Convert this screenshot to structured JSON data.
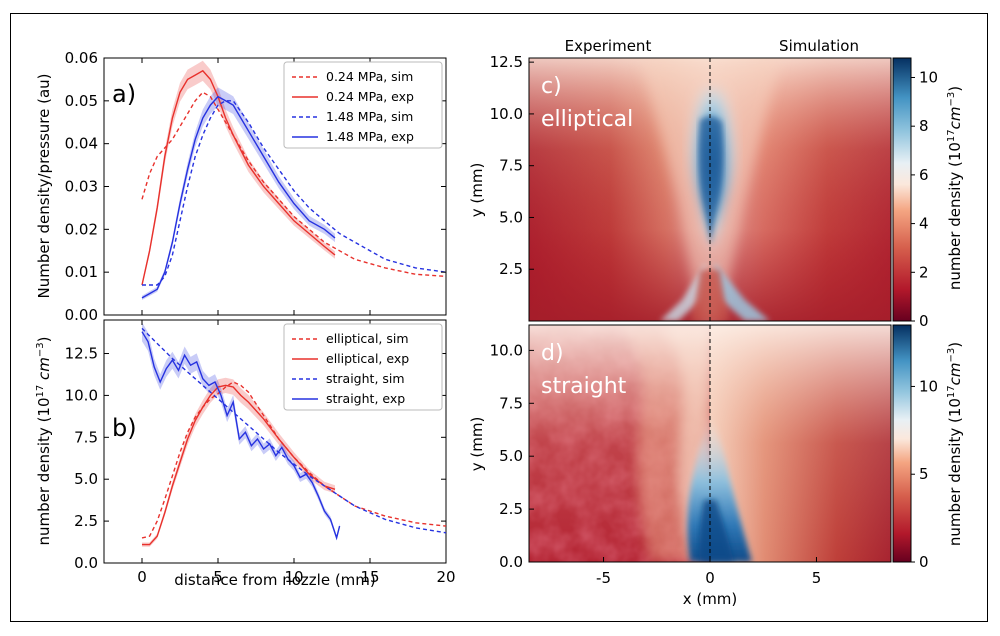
{
  "chart_data": [
    {
      "panel": "a)",
      "type": "line",
      "xlim": [
        -2.5,
        20
      ],
      "ylim": [
        0.0,
        0.06
      ],
      "xticks": [
        0,
        5,
        10,
        15,
        20
      ],
      "yticks": [
        "0.00",
        "0.01",
        "0.02",
        "0.03",
        "0.04",
        "0.05",
        "0.06"
      ],
      "ylabel": "Number density/pressure (au)",
      "xlabel": "",
      "legend_position": "top-right",
      "series": [
        {
          "name": "0.24 MPa, sim",
          "color": "#e8312c",
          "style": "dashed",
          "x": [
            0,
            0.5,
            1,
            1.5,
            2,
            2.5,
            3,
            3.5,
            4,
            4.5,
            5,
            5.5,
            6,
            7,
            8,
            9,
            10,
            11,
            12,
            13,
            14,
            16,
            18,
            20
          ],
          "y": [
            0.027,
            0.033,
            0.037,
            0.039,
            0.041,
            0.044,
            0.047,
            0.05,
            0.052,
            0.051,
            0.048,
            0.045,
            0.042,
            0.036,
            0.031,
            0.027,
            0.023,
            0.02,
            0.017,
            0.015,
            0.013,
            0.011,
            0.0095,
            0.009
          ]
        },
        {
          "name": "0.24 MPa, exp",
          "color": "#e8312c",
          "style": "solid",
          "x": [
            0,
            0.5,
            1,
            1.5,
            2,
            2.5,
            3,
            3.5,
            4,
            4.5,
            5,
            5.5,
            6,
            7,
            8,
            9,
            10,
            11,
            12,
            12.7
          ],
          "y": [
            0.007,
            0.015,
            0.025,
            0.037,
            0.046,
            0.052,
            0.055,
            0.056,
            0.057,
            0.055,
            0.051,
            0.046,
            0.042,
            0.035,
            0.03,
            0.026,
            0.022,
            0.019,
            0.016,
            0.014
          ]
        },
        {
          "name": "1.48 MPa, sim",
          "color": "#2632e0",
          "style": "dashed",
          "x": [
            0,
            1,
            1.5,
            2,
            2.5,
            3,
            3.5,
            4,
            4.5,
            5,
            5.5,
            6,
            7,
            8,
            9,
            10,
            11,
            12,
            13,
            14,
            16,
            18,
            20
          ],
          "y": [
            0.007,
            0.007,
            0.009,
            0.014,
            0.022,
            0.03,
            0.037,
            0.042,
            0.046,
            0.049,
            0.05,
            0.05,
            0.045,
            0.039,
            0.034,
            0.029,
            0.025,
            0.022,
            0.019,
            0.017,
            0.013,
            0.011,
            0.01
          ]
        },
        {
          "name": "1.48 MPa, exp",
          "color": "#2632e0",
          "style": "solid",
          "x": [
            0,
            0.5,
            1,
            1.5,
            2,
            2.5,
            3,
            3.5,
            4,
            4.5,
            5,
            5.5,
            6,
            7,
            8,
            9,
            10,
            11,
            12,
            12.7
          ],
          "y": [
            0.004,
            0.005,
            0.006,
            0.01,
            0.017,
            0.026,
            0.034,
            0.041,
            0.046,
            0.049,
            0.051,
            0.05,
            0.049,
            0.043,
            0.037,
            0.031,
            0.026,
            0.022,
            0.02,
            0.018
          ]
        }
      ]
    },
    {
      "panel": "b)",
      "type": "line",
      "xlim": [
        -2.5,
        20
      ],
      "ylim": [
        0.0,
        14.5
      ],
      "xticks": [
        0,
        5,
        10,
        15,
        20
      ],
      "yticks": [
        "0.0",
        "2.5",
        "5.0",
        "7.5",
        "10.0",
        "12.5"
      ],
      "ylabel": "number density (10¹⁷ cm⁻³)",
      "xlabel": "distance from nozzle (mm)",
      "legend_position": "top-right",
      "series": [
        {
          "name": "elliptical, sim",
          "color": "#e8312c",
          "style": "dashed",
          "x": [
            0,
            0.5,
            1,
            1.5,
            2,
            2.5,
            3,
            3.5,
            4,
            4.5,
            5,
            5.5,
            6,
            6.5,
            7,
            8,
            9,
            10,
            11,
            12,
            13,
            14,
            16,
            18,
            20
          ],
          "y": [
            1.5,
            1.6,
            2.5,
            3.8,
            5.2,
            6.6,
            7.8,
            8.7,
            9.3,
            9.8,
            10.1,
            10.5,
            10.8,
            10.6,
            10.2,
            8.8,
            7.4,
            6.3,
            5.4,
            4.6,
            4.0,
            3.4,
            2.8,
            2.4,
            2.2
          ]
        },
        {
          "name": "elliptical, exp",
          "color": "#e8312c",
          "style": "solid",
          "x": [
            0,
            0.5,
            1,
            1.5,
            2,
            2.5,
            3,
            3.5,
            4,
            4.5,
            5,
            5.5,
            6,
            6.5,
            7,
            8,
            9,
            10,
            11,
            12,
            12.7
          ],
          "y": [
            1.1,
            1.1,
            1.6,
            3.0,
            4.6,
            6.0,
            7.4,
            8.5,
            9.3,
            10.0,
            10.5,
            10.6,
            10.5,
            10.0,
            9.6,
            8.6,
            7.4,
            6.3,
            5.3,
            4.6,
            4.4
          ]
        },
        {
          "name": "straight, sim",
          "color": "#2632e0",
          "style": "dashed",
          "x": [
            0,
            1,
            2,
            3,
            4,
            5,
            6,
            7,
            8,
            9,
            10,
            11,
            12,
            13,
            14,
            16,
            18,
            20
          ],
          "y": [
            14.0,
            13.1,
            12.2,
            11.4,
            10.6,
            9.8,
            9.0,
            8.2,
            7.4,
            6.6,
            5.9,
            5.2,
            4.6,
            4.0,
            3.4,
            2.6,
            2.1,
            1.8
          ]
        },
        {
          "name": "straight, exp",
          "color": "#2632e0",
          "style": "solid",
          "x": [
            0,
            0.4,
            0.8,
            1.2,
            1.6,
            2,
            2.4,
            2.8,
            3.2,
            3.6,
            4,
            4.4,
            4.8,
            5.2,
            5.6,
            6,
            6.4,
            6.8,
            7.2,
            7.6,
            8,
            8.4,
            8.8,
            9.2,
            9.6,
            10,
            10.4,
            10.8,
            11.2,
            11.6,
            12,
            12.4,
            12.8,
            13
          ],
          "y": [
            13.8,
            13.2,
            11.7,
            10.8,
            11.6,
            12.1,
            11.5,
            12.4,
            11.8,
            12.0,
            11.0,
            10.6,
            10.8,
            10.0,
            8.8,
            9.6,
            7.4,
            7.8,
            7.0,
            7.4,
            6.8,
            7.1,
            6.4,
            6.9,
            6.2,
            5.8,
            5.1,
            5.3,
            4.8,
            4.0,
            3.1,
            2.6,
            1.5,
            2.2
          ]
        }
      ]
    },
    {
      "panel": "c)",
      "type": "heatmap",
      "title_left": "Experiment",
      "title_right": "Simulation",
      "annotation_label": "c)",
      "annotation_text": "elliptical",
      "xlim": [
        -8.5,
        8.5
      ],
      "ylim": [
        0,
        12.7
      ],
      "yticks": [
        "2.5",
        "5.0",
        "7.5",
        "10.0",
        "12.5"
      ],
      "ylabel": "y (mm)",
      "colorbar_label": "number density (10¹⁷cm⁻³)",
      "colorbar_ticks": [
        "0",
        "2",
        "4",
        "6",
        "8",
        "10"
      ],
      "colorbar_range": [
        0,
        10.8
      ],
      "colormap": "RdBu"
    },
    {
      "panel": "d)",
      "type": "heatmap",
      "annotation_label": "d)",
      "annotation_text": "straight",
      "xlim": [
        -8.5,
        8.5
      ],
      "ylim": [
        0,
        11.2
      ],
      "xticks": [
        "-5",
        "0",
        "5"
      ],
      "yticks": [
        "0.0",
        "2.5",
        "5.0",
        "7.5",
        "10.0"
      ],
      "ylabel": "y (mm)",
      "xlabel": "x (mm)",
      "colorbar_label": "number density (10¹⁷cm⁻³)",
      "colorbar_ticks": [
        "0",
        "5",
        "10"
      ],
      "colorbar_range": [
        0,
        13.5
      ],
      "colormap": "RdBu"
    }
  ]
}
